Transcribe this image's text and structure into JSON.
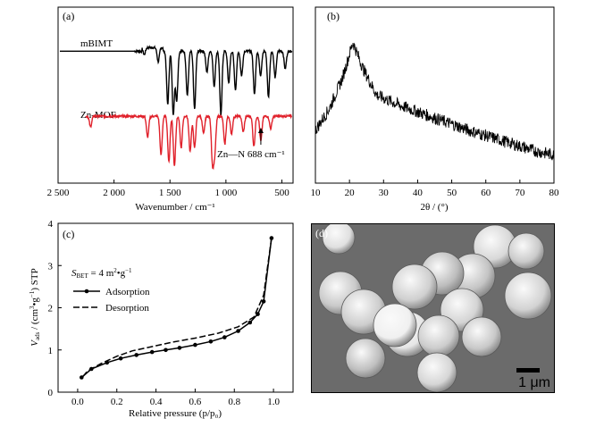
{
  "colors": {
    "mbimt": "#000000",
    "znmof": "#e0202a",
    "adsorption": "#000000",
    "desorption": "#000000"
  },
  "chart_data": [
    {
      "panel": "(a)",
      "type": "line",
      "xlabel": "Wavenumber / cm⁻¹",
      "xlim": [
        2500,
        400
      ],
      "x_ticks": [
        "2 500",
        "2 000",
        "1 500",
        "1 000",
        "500"
      ],
      "x_tick_values": [
        2500,
        2000,
        1500,
        1000,
        500
      ],
      "series": [
        {
          "name": "mBIMT",
          "color": "#000000",
          "offset": 0.75,
          "bands": [
            [
              1730,
              0.04
            ],
            [
              1605,
              0.08
            ],
            [
              1520,
              0.3
            ],
            [
              1470,
              0.36
            ],
            [
              1440,
              0.28
            ],
            [
              1345,
              0.25
            ],
            [
              1280,
              0.33
            ],
            [
              1170,
              0.12
            ],
            [
              1105,
              0.2
            ],
            [
              1045,
              0.36
            ],
            [
              975,
              0.18
            ],
            [
              915,
              0.22
            ],
            [
              860,
              0.14
            ],
            [
              745,
              0.24
            ],
            [
              690,
              0.14
            ],
            [
              620,
              0.26
            ],
            [
              560,
              0.15
            ],
            [
              470,
              0.1
            ]
          ]
        },
        {
          "name": "Zn-MOF",
          "color": "#e0202a",
          "offset": 0.38,
          "bands": [
            [
              2210,
              0.06
            ],
            [
              1700,
              0.12
            ],
            [
              1580,
              0.22
            ],
            [
              1510,
              0.26
            ],
            [
              1460,
              0.28
            ],
            [
              1400,
              0.18
            ],
            [
              1320,
              0.2
            ],
            [
              1280,
              0.18
            ],
            [
              1200,
              0.1
            ],
            [
              1120,
              0.26
            ],
            [
              1100,
              0.2
            ],
            [
              1010,
              0.16
            ],
            [
              950,
              0.1
            ],
            [
              845,
              0.09
            ],
            [
              750,
              0.17
            ],
            [
              688,
              0.14
            ],
            [
              600,
              0.07
            ]
          ]
        }
      ],
      "annotations": {
        "znmof_label": "Zn-MOF",
        "mbimt_label": "mBIMT",
        "peak_label": "Zn—N  688 cm⁻¹",
        "peak_x": 688
      }
    },
    {
      "panel": "(b)",
      "type": "line",
      "xlabel": "2θ / (°)",
      "xlim": [
        10,
        80
      ],
      "x_ticks": [
        "10",
        "20",
        "30",
        "40",
        "50",
        "60",
        "70",
        "80"
      ],
      "x_tick_values": [
        10,
        20,
        30,
        40,
        50,
        60,
        70,
        80
      ],
      "series": [
        {
          "name": "",
          "color": "#000000",
          "profile": [
            [
              10,
              0.3
            ],
            [
              14,
              0.42
            ],
            [
              18,
              0.6
            ],
            [
              21,
              0.8
            ],
            [
              24,
              0.65
            ],
            [
              28,
              0.5
            ],
            [
              35,
              0.44
            ],
            [
              45,
              0.37
            ],
            [
              55,
              0.3
            ],
            [
              65,
              0.24
            ],
            [
              75,
              0.18
            ],
            [
              80,
              0.16
            ]
          ]
        }
      ]
    },
    {
      "panel": "(c)",
      "type": "line",
      "xlabel": "Relative pressure (p/p₀)",
      "ylabel": "V_ads / (cm³•g⁻¹) STP",
      "xlim": [
        -0.1,
        1.1
      ],
      "ylim": [
        0,
        4
      ],
      "x_ticks": [
        "0.0",
        "0.2",
        "0.4",
        "0.6",
        "0.8",
        "1.0"
      ],
      "x_tick_values": [
        0.0,
        0.2,
        0.4,
        0.6,
        0.8,
        1.0
      ],
      "y_ticks": [
        "0",
        "1",
        "2",
        "3",
        "4"
      ],
      "y_tick_values": [
        0,
        1,
        2,
        3,
        4
      ],
      "annotation": "S_BET = 4 m²•g⁻¹",
      "legend": [
        "Adsorption",
        "Desorption"
      ],
      "series": [
        {
          "name": "Adsorption",
          "style": "solid-markers",
          "x": [
            0.02,
            0.07,
            0.15,
            0.22,
            0.3,
            0.38,
            0.45,
            0.52,
            0.6,
            0.68,
            0.75,
            0.82,
            0.88,
            0.92,
            0.95,
            0.99
          ],
          "y": [
            0.35,
            0.55,
            0.7,
            0.8,
            0.88,
            0.95,
            1.0,
            1.05,
            1.12,
            1.2,
            1.3,
            1.45,
            1.65,
            1.85,
            2.15,
            3.65
          ]
        },
        {
          "name": "Desorption",
          "style": "dashed",
          "x": [
            0.99,
            0.95,
            0.9,
            0.82,
            0.72,
            0.6,
            0.48,
            0.38,
            0.28,
            0.2,
            0.12,
            0.05,
            0.02
          ],
          "y": [
            3.65,
            2.3,
            1.78,
            1.55,
            1.4,
            1.28,
            1.18,
            1.08,
            0.98,
            0.85,
            0.68,
            0.5,
            0.33
          ]
        }
      ]
    }
  ],
  "panel_d": {
    "label": "(d)",
    "scale_bar_text": "1 μm",
    "spheres": [
      {
        "shade": "#d8d8d8"
      },
      {
        "shade": "#c4c4c4"
      },
      {
        "shade": "#bdbdbd"
      },
      {
        "shade": "#cfcfcf"
      },
      {
        "shade": "#c9c9c9"
      },
      {
        "shade": "#d2d2d2"
      },
      {
        "shade": "#cdcdcd"
      },
      {
        "shade": "#e6e6e6"
      },
      {
        "shade": "#d4d4d4"
      },
      {
        "shade": "#cccccc"
      },
      {
        "shade": "#f0f0f0"
      },
      {
        "shade": "#c8c8c8"
      },
      {
        "shade": "#d6d6d6"
      },
      {
        "shade": "#bfbfbf"
      },
      {
        "shade": "#cacaca"
      },
      {
        "shade": "#e0e0e0"
      }
    ]
  }
}
